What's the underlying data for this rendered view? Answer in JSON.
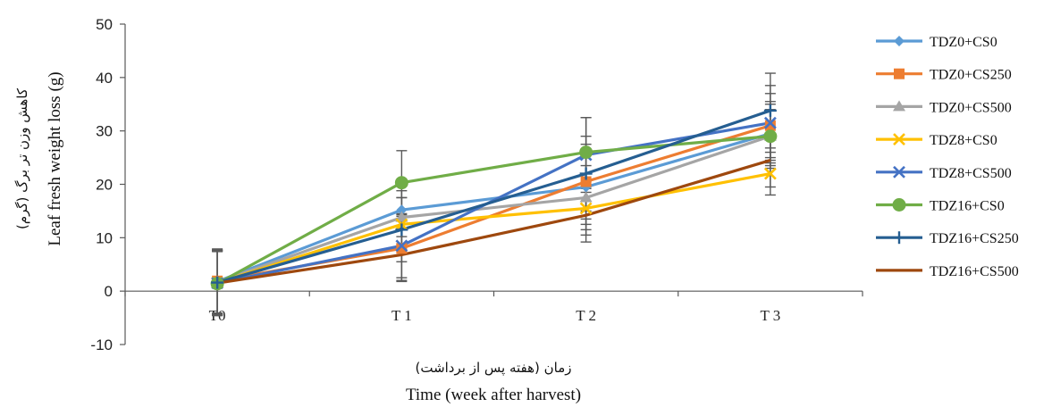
{
  "chart_data": {
    "type": "line",
    "title": "",
    "xlabel": "Time (week after harvest)",
    "xlabel_fa": "زمان (هفته پس از برداشت)",
    "ylabel": "Leaf fresh weight loss (g)",
    "ylabel_fa": "کاهش وزن تر برگ (گرم)",
    "categories": [
      "T0",
      "T 1",
      "T 2",
      "T 3"
    ],
    "ylim": [
      -10,
      50
    ],
    "yticks": [
      -10,
      0,
      10,
      20,
      30,
      40,
      50
    ],
    "grid": false,
    "legend_position": "right",
    "series": [
      {
        "name": "TDZ0+CS0",
        "color": "#5B9BD5",
        "marker": "diamond",
        "values": [
          1.8,
          15.2,
          19.5,
          29.5
        ],
        "err": [
          6.0,
          5.0,
          7.0,
          6.0
        ]
      },
      {
        "name": "TDZ0+CS250",
        "color": "#ED7D31",
        "marker": "square",
        "values": [
          1.9,
          8.0,
          20.5,
          31.0
        ],
        "err": [
          6.0,
          6.0,
          7.0,
          6.0
        ]
      },
      {
        "name": "TDZ0+CS500",
        "color": "#A5A5A5",
        "marker": "triangle",
        "values": [
          1.7,
          13.8,
          17.5,
          29.0
        ],
        "err": [
          6.0,
          5.0,
          6.0,
          6.0
        ]
      },
      {
        "name": "TDZ8+CS0",
        "color": "#FFC000",
        "marker": "x",
        "values": [
          1.6,
          12.5,
          15.5,
          22.0
        ],
        "err": [
          6.0,
          5.0,
          5.0,
          4.0
        ]
      },
      {
        "name": "TDZ8+CS500",
        "color": "#4472C4",
        "marker": "x",
        "values": [
          1.5,
          8.5,
          25.5,
          31.5
        ],
        "err": [
          6.0,
          6.0,
          7.0,
          7.0
        ]
      },
      {
        "name": "TDZ16+CS0",
        "color": "#70AD47",
        "marker": "circle",
        "values": [
          1.4,
          20.3,
          26.0,
          29.0
        ],
        "err": [
          6.0,
          6.0,
          6.5,
          5.0
        ]
      },
      {
        "name": "TDZ16+CS250",
        "color": "#255E91",
        "marker": "plus",
        "values": [
          1.6,
          11.5,
          22.0,
          33.8
        ],
        "err": [
          6.0,
          6.0,
          7.0,
          7.0
        ]
      },
      {
        "name": "TDZ16+CS500",
        "color": "#9E480E",
        "marker": "none",
        "values": [
          1.5,
          6.8,
          14.2,
          24.5
        ],
        "err": [
          6.0,
          5.0,
          5.0,
          5.0
        ]
      }
    ]
  }
}
